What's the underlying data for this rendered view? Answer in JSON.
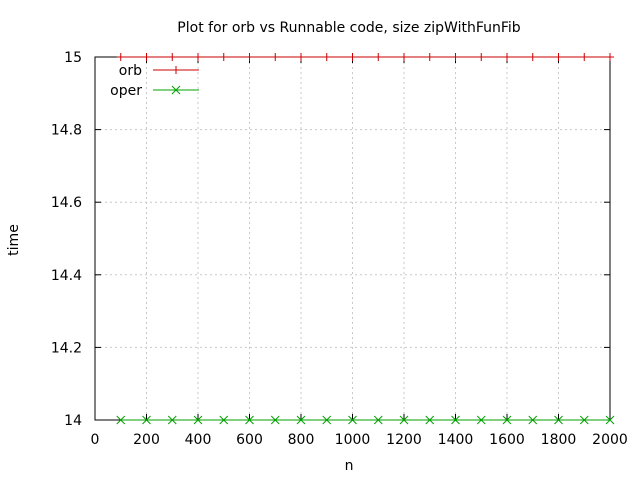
{
  "chart_data": {
    "type": "line",
    "title": "Plot for orb vs Runnable code, size zipWithFunFib",
    "xlabel": "n",
    "ylabel": "time",
    "xlim": [
      0,
      2000
    ],
    "ylim": [
      14,
      15
    ],
    "xticks": [
      0,
      200,
      400,
      600,
      800,
      1000,
      1200,
      1400,
      1600,
      1800,
      2000
    ],
    "yticks": [
      14,
      14.2,
      14.4,
      14.6,
      14.8,
      15
    ],
    "ytick_labels": [
      "14",
      "14.2",
      "14.4",
      "14.6",
      "14.8",
      "15"
    ],
    "grid": true,
    "legend_position": "top-left",
    "x": [
      100,
      200,
      300,
      400,
      500,
      600,
      700,
      800,
      900,
      1000,
      1100,
      1200,
      1300,
      1400,
      1500,
      1600,
      1700,
      1800,
      1900,
      2000
    ],
    "series": [
      {
        "name": "orb",
        "color": "#cc0000",
        "marker": "plus",
        "values": [
          15,
          15,
          15,
          15,
          15,
          15,
          15,
          15,
          15,
          15,
          15,
          15,
          15,
          15,
          15,
          15,
          15,
          15,
          15,
          15
        ]
      },
      {
        "name": "oper",
        "color": "#00a000",
        "marker": "x",
        "values": [
          14,
          14,
          14,
          14,
          14,
          14,
          14,
          14,
          14,
          14,
          14,
          14,
          14,
          14,
          14,
          14,
          14,
          14,
          14,
          14
        ]
      }
    ]
  }
}
